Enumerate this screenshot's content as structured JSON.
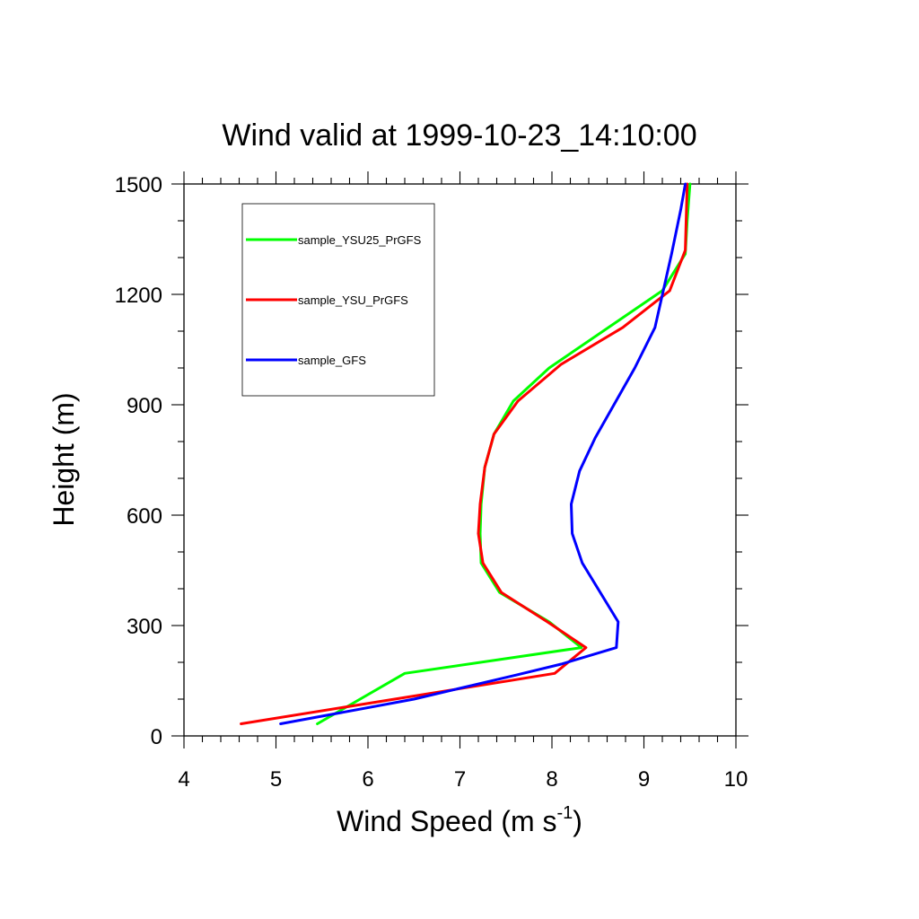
{
  "chart_data": {
    "type": "line",
    "title": "Wind valid at 1999-10-23_14:10:00",
    "xlabel": "Wind Speed (m s",
    "xlabel_superscript": "-1",
    "xlabel_suffix": ")",
    "ylabel": "Height (m)",
    "xlim": [
      4,
      10
    ],
    "ylim": [
      0,
      1500
    ],
    "xticks": [
      4,
      5,
      6,
      7,
      8,
      9,
      10
    ],
    "yticks": [
      0,
      300,
      600,
      900,
      1200,
      1500
    ],
    "x_minor_step": 0.2,
    "y_minor_step": 100,
    "grid": false,
    "legend_position": "top-left",
    "series": [
      {
        "name": "sample_YSU25_PrGFS",
        "color": "#00ff00",
        "x": [
          5.45,
          6.4,
          8.32,
          7.97,
          7.43,
          7.23,
          7.22,
          7.23,
          7.27,
          7.37,
          7.58,
          7.97,
          9.2,
          9.45,
          9.47,
          9.5
        ],
        "y": [
          33,
          170,
          240,
          310,
          390,
          470,
          550,
          630,
          730,
          820,
          910,
          1000,
          1210,
          1310,
          1400,
          1500
        ]
      },
      {
        "name": "sample_YSU_PrGFS",
        "color": "#ff0000",
        "x": [
          4.62,
          8.03,
          8.37,
          7.95,
          7.45,
          7.25,
          7.2,
          7.22,
          7.27,
          7.37,
          7.63,
          8.1,
          8.77,
          9.28,
          9.45,
          9.47
        ],
        "y": [
          33,
          170,
          240,
          310,
          390,
          470,
          550,
          630,
          730,
          820,
          910,
          1010,
          1110,
          1210,
          1320,
          1500
        ]
      },
      {
        "name": "sample_GFS",
        "color": "#0000ff",
        "x": [
          5.05,
          6.5,
          7.6,
          8.1,
          8.7,
          8.72,
          8.33,
          8.22,
          8.21,
          8.3,
          8.47,
          8.9,
          9.12,
          9.3,
          9.4,
          9.45
        ],
        "y": [
          33,
          100,
          165,
          195,
          240,
          310,
          470,
          550,
          630,
          720,
          810,
          1000,
          1110,
          1310,
          1430,
          1500
        ]
      }
    ]
  }
}
